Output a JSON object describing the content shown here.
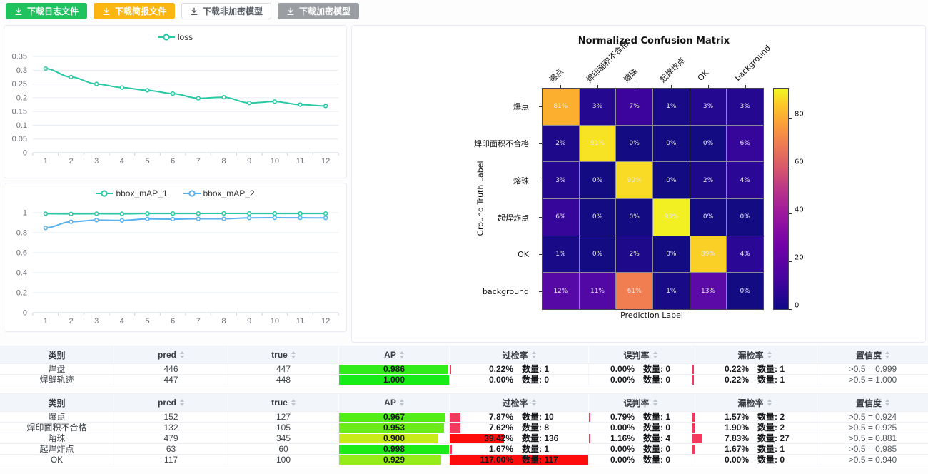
{
  "toolbar": {
    "buttons": [
      {
        "name": "download-log-button",
        "label": "下载日志文件",
        "type": "success",
        "bg": "#20c25e",
        "fg": "#ffffff",
        "border": "#20c25e"
      },
      {
        "name": "download-brief-button",
        "label": "下载简报文件",
        "type": "warning",
        "bg": "#fbb612",
        "fg": "#ffffff",
        "border": "#fbb612"
      },
      {
        "name": "download-plain-model-button",
        "label": "下载非加密模型",
        "type": "plain",
        "bg": "#ffffff",
        "fg": "#5a5e66",
        "border": "#d9dce1"
      },
      {
        "name": "download-encrypted-model-button",
        "label": "下载加密模型",
        "type": "info",
        "bg": "#9a9da2",
        "fg": "#ffffff",
        "border": "#9a9da2"
      }
    ]
  },
  "chart_data": [
    {
      "id": "loss-chart",
      "type": "line",
      "title": "",
      "xlabel": "",
      "ylabel": "",
      "legend_position": "top",
      "grid": true,
      "x": [
        1,
        2,
        3,
        4,
        5,
        6,
        7,
        8,
        9,
        10,
        11,
        12
      ],
      "ylim": [
        0,
        0.35
      ],
      "yticks": [
        0,
        0.05,
        0.1,
        0.15,
        0.2,
        0.25,
        0.3,
        0.35
      ],
      "series": [
        {
          "name": "loss",
          "color": "#26c9a3",
          "values": [
            0.306,
            0.275,
            0.25,
            0.237,
            0.227,
            0.215,
            0.198,
            0.202,
            0.181,
            0.186,
            0.175,
            0.17
          ]
        }
      ]
    },
    {
      "id": "map-chart",
      "type": "line",
      "title": "",
      "xlabel": "",
      "ylabel": "",
      "legend_position": "top",
      "grid": true,
      "x": [
        1,
        2,
        3,
        4,
        5,
        6,
        7,
        8,
        9,
        10,
        11,
        12
      ],
      "ylim": [
        0,
        1
      ],
      "yticks": [
        0,
        0.2,
        0.4,
        0.6,
        0.8,
        1
      ],
      "series": [
        {
          "name": "bbox_mAP_1",
          "color": "#26c9a3",
          "values": [
            0.99,
            0.988,
            0.99,
            0.989,
            0.992,
            0.992,
            0.992,
            0.993,
            0.992,
            0.992,
            0.992,
            0.992
          ]
        },
        {
          "name": "bbox_mAP_2",
          "color": "#58b1f0",
          "values": [
            0.848,
            0.91,
            0.926,
            0.923,
            0.938,
            0.936,
            0.939,
            0.939,
            0.948,
            0.95,
            0.949,
            0.948
          ]
        }
      ]
    },
    {
      "id": "confusion-matrix",
      "type": "heatmap",
      "title": "Normalized Confusion Matrix",
      "xlabel": "Prediction Label",
      "ylabel": "Ground Truth Label",
      "classes": [
        "爆点",
        "焊印面积不合格",
        "熔珠",
        "起焊炸点",
        "OK",
        "background"
      ],
      "matrix_percent": [
        [
          81,
          3,
          7,
          1,
          3,
          3
        ],
        [
          2,
          91,
          0,
          0,
          0,
          6
        ],
        [
          3,
          0,
          90,
          0,
          2,
          4
        ],
        [
          6,
          0,
          0,
          93,
          0,
          0
        ],
        [
          1,
          0,
          2,
          0,
          89,
          4
        ],
        [
          12,
          11,
          61,
          1,
          13,
          0
        ]
      ],
      "vmax": 93,
      "colorbar_ticks": [
        0,
        20,
        40,
        60,
        80
      ],
      "colormap": "plasma"
    }
  ],
  "tables": [
    {
      "headers": [
        {
          "label": "类别",
          "sortable": false
        },
        {
          "label": "pred",
          "sortable": true
        },
        {
          "label": "true",
          "sortable": true
        },
        {
          "label": "AP",
          "sortable": true
        },
        {
          "label": "过检率",
          "sortable": true
        },
        {
          "label": "误判率",
          "sortable": true
        },
        {
          "label": "漏检率",
          "sortable": true
        },
        {
          "label": "置信度",
          "sortable": true
        }
      ],
      "count_prefix": "数量:",
      "rows": [
        {
          "category": "焊盘",
          "pred": "446",
          "true": "447",
          "ap": 0.986,
          "ap_text": "0.986",
          "overkill": {
            "pct": 0.22,
            "pct_text": "0.22%",
            "count": "1"
          },
          "misjudge": {
            "pct": 0,
            "pct_text": "0.00%",
            "count": "0"
          },
          "miss": {
            "pct": 0.22,
            "pct_text": "0.22%",
            "count": "1"
          },
          "confidence": ">0.5 = 0.999"
        },
        {
          "category": "焊缝轨迹",
          "pred": "447",
          "true": "448",
          "ap": 1.0,
          "ap_text": "1.000",
          "overkill": {
            "pct": 0,
            "pct_text": "0.00%",
            "count": "0"
          },
          "misjudge": {
            "pct": 0,
            "pct_text": "0.00%",
            "count": "0"
          },
          "miss": {
            "pct": 0.22,
            "pct_text": "0.22%",
            "count": "1"
          },
          "confidence": ">0.5 = 1.000"
        }
      ]
    },
    {
      "headers": [
        {
          "label": "类别",
          "sortable": false
        },
        {
          "label": "pred",
          "sortable": true
        },
        {
          "label": "true",
          "sortable": true
        },
        {
          "label": "AP",
          "sortable": true
        },
        {
          "label": "过检率",
          "sortable": true
        },
        {
          "label": "误判率",
          "sortable": true
        },
        {
          "label": "漏检率",
          "sortable": true
        },
        {
          "label": "置信度",
          "sortable": true
        }
      ],
      "count_prefix": "数量:",
      "rows": [
        {
          "category": "爆点",
          "pred": "152",
          "true": "127",
          "ap": 0.967,
          "ap_text": "0.967",
          "overkill": {
            "pct": 7.87,
            "pct_text": "7.87%",
            "count": "10"
          },
          "misjudge": {
            "pct": 0.79,
            "pct_text": "0.79%",
            "count": "1"
          },
          "miss": {
            "pct": 1.57,
            "pct_text": "1.57%",
            "count": "2"
          },
          "confidence": ">0.5 = 0.924"
        },
        {
          "category": "焊印面积不合格",
          "pred": "132",
          "true": "105",
          "ap": 0.953,
          "ap_text": "0.953",
          "overkill": {
            "pct": 7.62,
            "pct_text": "7.62%",
            "count": "8"
          },
          "misjudge": {
            "pct": 0,
            "pct_text": "0.00%",
            "count": "0"
          },
          "miss": {
            "pct": 1.9,
            "pct_text": "1.90%",
            "count": "2"
          },
          "confidence": ">0.5 = 0.925"
        },
        {
          "category": "熔珠",
          "pred": "479",
          "true": "345",
          "ap": 0.9,
          "ap_text": "0.900",
          "overkill": {
            "pct": 39.42,
            "pct_text": "39.42%",
            "count": "136"
          },
          "misjudge": {
            "pct": 1.16,
            "pct_text": "1.16%",
            "count": "4"
          },
          "miss": {
            "pct": 7.83,
            "pct_text": "7.83%",
            "count": "27"
          },
          "confidence": ">0.5 = 0.881"
        },
        {
          "category": "起焊炸点",
          "pred": "63",
          "true": "60",
          "ap": 0.998,
          "ap_text": "0.998",
          "overkill": {
            "pct": 1.67,
            "pct_text": "1.67%",
            "count": "1"
          },
          "misjudge": {
            "pct": 0,
            "pct_text": "0.00%",
            "count": "0"
          },
          "miss": {
            "pct": 1.67,
            "pct_text": "1.67%",
            "count": "1"
          },
          "confidence": ">0.5 = 0.985"
        },
        {
          "category": "OK",
          "pred": "117",
          "true": "100",
          "ap": 0.929,
          "ap_text": "0.929",
          "overkill": {
            "pct": 117.0,
            "pct_text": "117.00%",
            "count": "117"
          },
          "misjudge": {
            "pct": 0,
            "pct_text": "0.00%",
            "count": "0"
          },
          "miss": {
            "pct": 0,
            "pct_text": "0.00%",
            "count": "0"
          },
          "confidence": ">0.5 = 0.940"
        }
      ]
    }
  ]
}
